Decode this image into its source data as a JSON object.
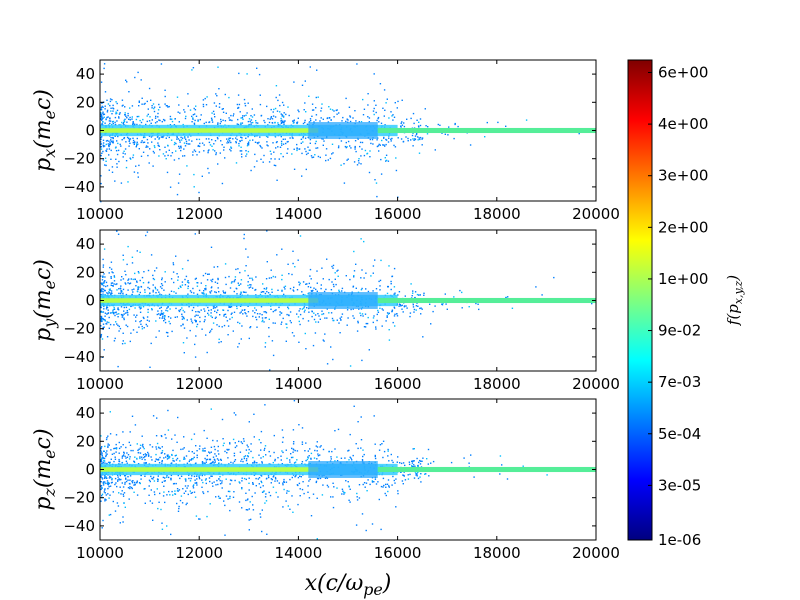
{
  "chart_data": {
    "type": "scatter",
    "panels": [
      {
        "ylabel_base": "p",
        "ylabel_sub": "x",
        "ylabel_unit": "(m",
        "ylabel_unit_sub": "e",
        "ylabel_unit_tail": "c)"
      },
      {
        "ylabel_base": "p",
        "ylabel_sub": "y",
        "ylabel_unit": "(m",
        "ylabel_unit_sub": "e",
        "ylabel_unit_tail": "c)"
      },
      {
        "ylabel_base": "p",
        "ylabel_sub": "z",
        "ylabel_unit": "(m",
        "ylabel_unit_sub": "e",
        "ylabel_unit_tail": "c)"
      }
    ],
    "xlim": [
      10000,
      20000
    ],
    "ylim": [
      -50,
      50
    ],
    "xticks": [
      10000,
      12000,
      14000,
      16000,
      18000,
      20000
    ],
    "xtick_labels": [
      "10000",
      "12000",
      "14000",
      "16000",
      "18000",
      "20000"
    ],
    "yticks": [
      -40,
      -20,
      0,
      20,
      40
    ],
    "ytick_labels": [
      "−40",
      "−20",
      "0",
      "20",
      "40"
    ],
    "xlabel_main": "x(c/ω",
    "xlabel_sub": "pe",
    "xlabel_tail": ")",
    "colorbar": {
      "tick_labels": [
        "1e-06",
        "3e-05",
        "5e-04",
        "7e-03",
        "9e-02",
        "1e+00",
        "2e+00",
        "3e+00",
        "4e+00",
        "6e+00"
      ],
      "label_base": "f(p",
      "label_sub": "x,y,z",
      "label_tail": ")",
      "colormap": [
        "#00007f",
        "#0000ff",
        "#007fff",
        "#00ffff",
        "#7fff7f",
        "#ffff00",
        "#ff7f00",
        "#ff0000",
        "#7f0000"
      ]
    },
    "grid": false
  }
}
